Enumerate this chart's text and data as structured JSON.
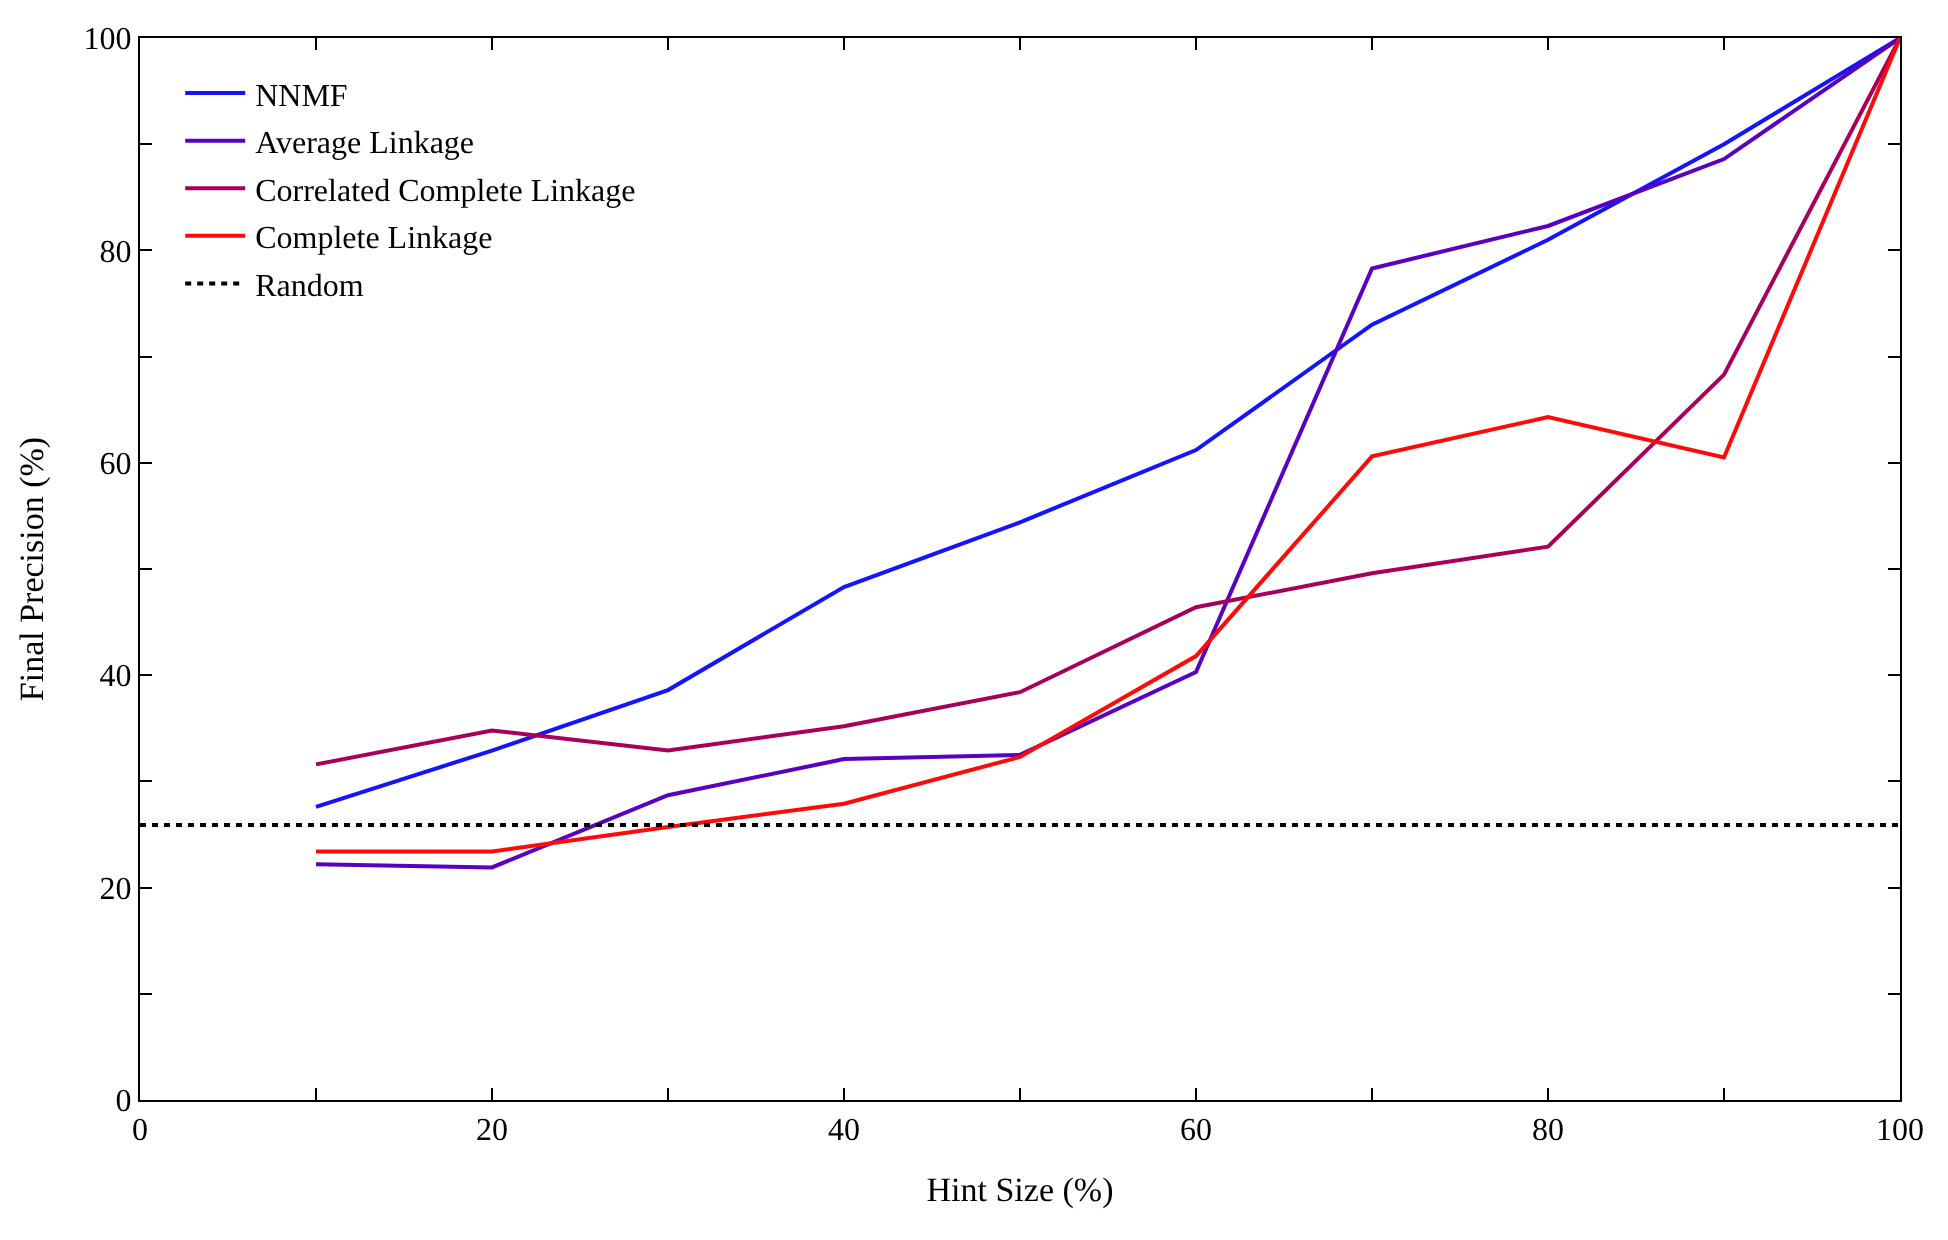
{
  "chart_data": {
    "type": "line",
    "xlabel": "Hint Size (%)",
    "ylabel": "Final Precision (%)",
    "x": [
      10,
      20,
      30,
      40,
      50,
      60,
      70,
      80,
      90,
      100
    ],
    "series": [
      {
        "name": "NNMF",
        "color": "#1414ff",
        "values": [
          27.6,
          32.9,
          38.6,
          48.3,
          54.4,
          61.2,
          73,
          81,
          90,
          100
        ]
      },
      {
        "name": "Average Linkage",
        "color": "#5a00c0",
        "values": [
          22.2,
          21.9,
          28.7,
          32.1,
          32.5,
          40.3,
          78.3,
          82.3,
          88.6,
          100
        ]
      },
      {
        "name": "Correlated Complete Linkage",
        "color": "#a8005a",
        "values": [
          31.6,
          34.8,
          32.9,
          35.2,
          38.4,
          46.4,
          49.6,
          52.1,
          68.3,
          100
        ]
      },
      {
        "name": "Complete Linkage",
        "color": "#ff0a0a",
        "values": [
          23.4,
          23.4,
          25.7,
          27.9,
          32.3,
          41.8,
          60.6,
          64.3,
          60.5,
          100
        ]
      }
    ],
    "ref_lines": [
      {
        "axis": "y",
        "value": 25.9,
        "label": "Random",
        "color": "#000000",
        "line_style": "dotted"
      }
    ],
    "xlim": [
      0,
      100
    ],
    "ylim": [
      0,
      100
    ],
    "xticks": [
      0,
      {
        "value": 10,
        "label": null
      },
      20,
      {
        "value": 30,
        "label": null
      },
      40,
      {
        "value": 50,
        "label": null
      },
      60,
      {
        "value": 70,
        "label": null
      },
      80,
      {
        "value": 90,
        "label": null
      },
      100
    ],
    "yticks": [
      0,
      {
        "value": 10,
        "label": null
      },
      20,
      {
        "value": 30,
        "label": null
      },
      40,
      {
        "value": 50,
        "label": null
      },
      60,
      {
        "value": 70,
        "label": null
      },
      80,
      {
        "value": 90,
        "label": null
      },
      100
    ],
    "legend": "top left",
    "marker": "none",
    "line_style": "solid"
  }
}
